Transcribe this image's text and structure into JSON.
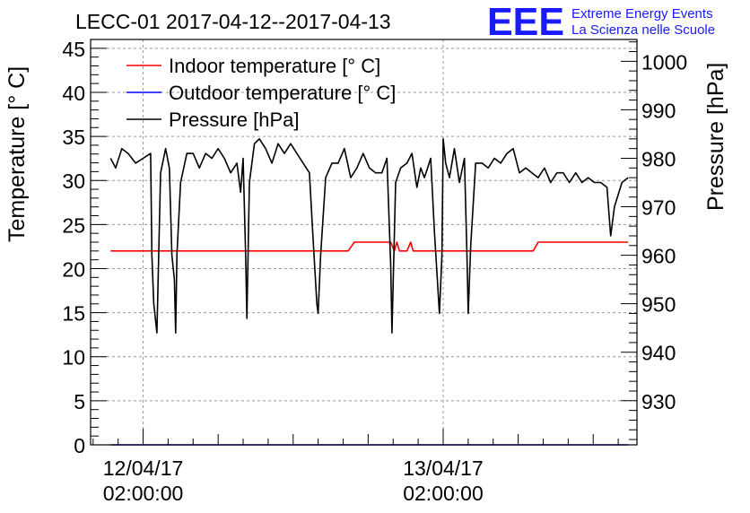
{
  "chart_data": {
    "type": "line",
    "title": "LECC-01 2017-04-12--2017-04-13",
    "ylabel_left": "Temperature [° C]",
    "ylabel_right": "Pressure [hPa]",
    "xlim_hours": [
      -4.2,
      39.5
    ],
    "ylim_left": [
      0,
      46
    ],
    "ylim_right": [
      920.9,
      1004.5
    ],
    "y_ticks_left": [
      0,
      5,
      10,
      15,
      20,
      25,
      30,
      35,
      40,
      45
    ],
    "y_ticks_right": [
      930,
      940,
      950,
      960,
      970,
      980,
      990,
      1000
    ],
    "x_tick_labels": [
      {
        "hour": 0,
        "date": "12/04/17",
        "time": "02:00:00"
      },
      {
        "hour": 24,
        "date": "13/04/17",
        "time": "02:00:00"
      }
    ],
    "grid": true,
    "legend_position": "top-left",
    "series": [
      {
        "name": "Indoor temperature [° C]",
        "color": "#ff0000",
        "axis": "left",
        "x": [
          -2.6,
          16.4,
          16.9,
          19.8,
          20.1,
          20.3,
          20.5,
          20.7,
          21.1,
          21.4,
          21.6,
          22.0,
          31.2,
          31.6,
          38.8
        ],
        "values": [
          22.0,
          22.0,
          23.0,
          23.0,
          22.0,
          23.0,
          22.0,
          22.0,
          22.0,
          23.0,
          22.0,
          22.0,
          22.0,
          23.0,
          23.0
        ]
      },
      {
        "name": "Outdoor temperature [° C]",
        "color": "#0000ff",
        "axis": "left",
        "x": [
          -2.6,
          38.8
        ],
        "values": [
          0.0,
          0.0
        ]
      },
      {
        "name": "Pressure [hPa]",
        "color": "#000000",
        "axis": "right",
        "x": [
          -2.6,
          -2.2,
          -1.7,
          -1.2,
          -0.6,
          0.0,
          0.6,
          0.7,
          0.85,
          1.1,
          1.4,
          1.8,
          2.1,
          2.3,
          2.5,
          2.6,
          2.7,
          3.0,
          3.5,
          4.0,
          4.5,
          5.0,
          5.5,
          6.0,
          6.5,
          7.0,
          7.5,
          7.8,
          8.0,
          8.2,
          8.3,
          8.5,
          8.9,
          9.3,
          9.8,
          10.3,
          10.8,
          11.3,
          11.8,
          12.3,
          12.8,
          13.3,
          13.6,
          13.9,
          14.0,
          14.2,
          14.6,
          15.1,
          15.6,
          16.1,
          16.6,
          17.1,
          17.6,
          18.1,
          18.6,
          19.1,
          19.5,
          19.8,
          19.9,
          20.2,
          20.6,
          21.1,
          21.5,
          21.9,
          22.2,
          22.5,
          23.0,
          23.3,
          23.7,
          23.9,
          24.0,
          24.2,
          24.5,
          24.9,
          25.3,
          25.7,
          25.9,
          26.0,
          26.2,
          26.6,
          27.1,
          27.6,
          28.1,
          28.6,
          29.1,
          29.6,
          30.1,
          30.6,
          31.1,
          31.6,
          32.1,
          32.6,
          33.1,
          33.6,
          34.1,
          34.6,
          35.1,
          35.6,
          36.1,
          36.6,
          37.1,
          37.4,
          37.7,
          38.3,
          38.8
        ],
        "values": [
          980,
          978,
          982,
          981,
          979,
          980,
          981,
          960,
          950,
          944,
          977,
          982,
          978,
          960,
          955,
          944,
          960,
          975,
          981,
          981,
          978,
          981,
          980,
          982,
          980,
          977,
          979,
          973,
          980,
          960,
          947,
          975,
          983,
          984,
          982,
          979,
          983,
          981,
          983,
          981,
          979,
          977,
          963,
          950,
          948,
          960,
          976,
          979,
          979,
          982,
          976,
          978,
          981,
          978,
          977,
          977,
          980,
          958,
          944,
          975,
          978,
          979,
          981,
          974,
          978,
          976,
          980,
          965,
          948,
          960,
          984,
          979,
          976,
          982,
          975,
          980,
          960,
          948,
          962,
          979,
          979,
          978,
          980,
          979,
          981,
          982,
          977,
          978,
          977,
          976,
          978,
          975,
          977,
          977,
          975,
          977,
          975,
          976,
          975,
          975,
          974,
          964,
          970,
          975,
          976
        ]
      }
    ]
  },
  "logo": {
    "letters": "EEE",
    "line1": "Extreme Energy Events",
    "line2": "La Scienza nelle Scuole"
  }
}
